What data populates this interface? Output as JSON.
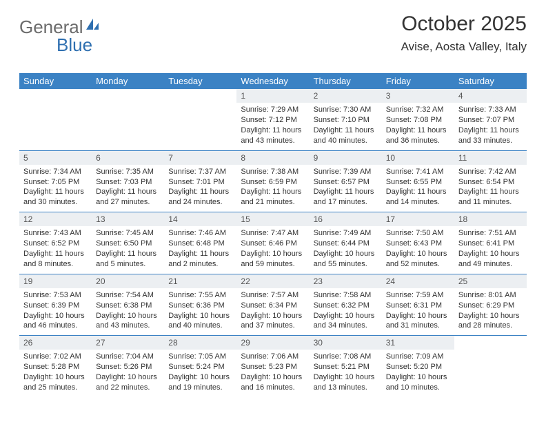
{
  "logo": {
    "text1": "General",
    "text2": "Blue"
  },
  "header": {
    "title": "October 2025",
    "location": "Avise, Aosta Valley, Italy"
  },
  "colors": {
    "headerBlue": "#3b82c4",
    "dayNumBg": "#eceff2",
    "logoGray": "#6b6b6b",
    "logoBlue": "#2e6fb0",
    "text": "#333333"
  },
  "dayNames": [
    "Sunday",
    "Monday",
    "Tuesday",
    "Wednesday",
    "Thursday",
    "Friday",
    "Saturday"
  ],
  "weeks": [
    [
      null,
      null,
      null,
      {
        "n": "1",
        "sunrise": "7:29 AM",
        "sunset": "7:12 PM",
        "daylight": "11 hours and 43 minutes."
      },
      {
        "n": "2",
        "sunrise": "7:30 AM",
        "sunset": "7:10 PM",
        "daylight": "11 hours and 40 minutes."
      },
      {
        "n": "3",
        "sunrise": "7:32 AM",
        "sunset": "7:08 PM",
        "daylight": "11 hours and 36 minutes."
      },
      {
        "n": "4",
        "sunrise": "7:33 AM",
        "sunset": "7:07 PM",
        "daylight": "11 hours and 33 minutes."
      }
    ],
    [
      {
        "n": "5",
        "sunrise": "7:34 AM",
        "sunset": "7:05 PM",
        "daylight": "11 hours and 30 minutes."
      },
      {
        "n": "6",
        "sunrise": "7:35 AM",
        "sunset": "7:03 PM",
        "daylight": "11 hours and 27 minutes."
      },
      {
        "n": "7",
        "sunrise": "7:37 AM",
        "sunset": "7:01 PM",
        "daylight": "11 hours and 24 minutes."
      },
      {
        "n": "8",
        "sunrise": "7:38 AM",
        "sunset": "6:59 PM",
        "daylight": "11 hours and 21 minutes."
      },
      {
        "n": "9",
        "sunrise": "7:39 AM",
        "sunset": "6:57 PM",
        "daylight": "11 hours and 17 minutes."
      },
      {
        "n": "10",
        "sunrise": "7:41 AM",
        "sunset": "6:55 PM",
        "daylight": "11 hours and 14 minutes."
      },
      {
        "n": "11",
        "sunrise": "7:42 AM",
        "sunset": "6:54 PM",
        "daylight": "11 hours and 11 minutes."
      }
    ],
    [
      {
        "n": "12",
        "sunrise": "7:43 AM",
        "sunset": "6:52 PM",
        "daylight": "11 hours and 8 minutes."
      },
      {
        "n": "13",
        "sunrise": "7:45 AM",
        "sunset": "6:50 PM",
        "daylight": "11 hours and 5 minutes."
      },
      {
        "n": "14",
        "sunrise": "7:46 AM",
        "sunset": "6:48 PM",
        "daylight": "11 hours and 2 minutes."
      },
      {
        "n": "15",
        "sunrise": "7:47 AM",
        "sunset": "6:46 PM",
        "daylight": "10 hours and 59 minutes."
      },
      {
        "n": "16",
        "sunrise": "7:49 AM",
        "sunset": "6:44 PM",
        "daylight": "10 hours and 55 minutes."
      },
      {
        "n": "17",
        "sunrise": "7:50 AM",
        "sunset": "6:43 PM",
        "daylight": "10 hours and 52 minutes."
      },
      {
        "n": "18",
        "sunrise": "7:51 AM",
        "sunset": "6:41 PM",
        "daylight": "10 hours and 49 minutes."
      }
    ],
    [
      {
        "n": "19",
        "sunrise": "7:53 AM",
        "sunset": "6:39 PM",
        "daylight": "10 hours and 46 minutes."
      },
      {
        "n": "20",
        "sunrise": "7:54 AM",
        "sunset": "6:38 PM",
        "daylight": "10 hours and 43 minutes."
      },
      {
        "n": "21",
        "sunrise": "7:55 AM",
        "sunset": "6:36 PM",
        "daylight": "10 hours and 40 minutes."
      },
      {
        "n": "22",
        "sunrise": "7:57 AM",
        "sunset": "6:34 PM",
        "daylight": "10 hours and 37 minutes."
      },
      {
        "n": "23",
        "sunrise": "7:58 AM",
        "sunset": "6:32 PM",
        "daylight": "10 hours and 34 minutes."
      },
      {
        "n": "24",
        "sunrise": "7:59 AM",
        "sunset": "6:31 PM",
        "daylight": "10 hours and 31 minutes."
      },
      {
        "n": "25",
        "sunrise": "8:01 AM",
        "sunset": "6:29 PM",
        "daylight": "10 hours and 28 minutes."
      }
    ],
    [
      {
        "n": "26",
        "sunrise": "7:02 AM",
        "sunset": "5:28 PM",
        "daylight": "10 hours and 25 minutes."
      },
      {
        "n": "27",
        "sunrise": "7:04 AM",
        "sunset": "5:26 PM",
        "daylight": "10 hours and 22 minutes."
      },
      {
        "n": "28",
        "sunrise": "7:05 AM",
        "sunset": "5:24 PM",
        "daylight": "10 hours and 19 minutes."
      },
      {
        "n": "29",
        "sunrise": "7:06 AM",
        "sunset": "5:23 PM",
        "daylight": "10 hours and 16 minutes."
      },
      {
        "n": "30",
        "sunrise": "7:08 AM",
        "sunset": "5:21 PM",
        "daylight": "10 hours and 13 minutes."
      },
      {
        "n": "31",
        "sunrise": "7:09 AM",
        "sunset": "5:20 PM",
        "daylight": "10 hours and 10 minutes."
      },
      null
    ]
  ],
  "labels": {
    "sunrise": "Sunrise: ",
    "sunset": "Sunset: ",
    "daylight": "Daylight: "
  }
}
